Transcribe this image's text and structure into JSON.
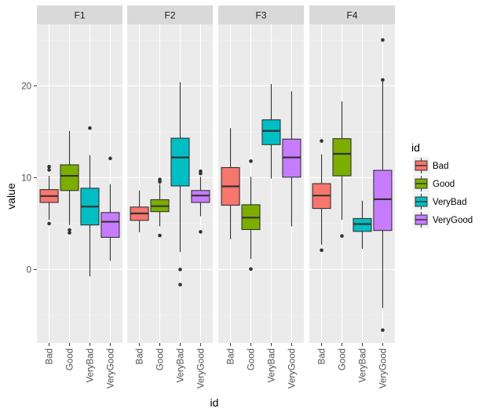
{
  "chart_data": {
    "type": "boxplot",
    "title": "",
    "xlabel": "id",
    "ylabel": "value",
    "ylim": [
      -8.0,
      26.7
    ],
    "yticks": [
      0,
      10,
      20
    ],
    "ytick_labels": [
      "0",
      "10",
      "20"
    ],
    "y_minor_gridlines": [
      -5,
      5,
      15,
      25
    ],
    "grid": true,
    "facet_variable": "",
    "facets": [
      "F1",
      "F2",
      "F3",
      "F4"
    ],
    "categories": [
      "Bad",
      "Good",
      "VeryBad",
      "VeryGood"
    ],
    "colors": {
      "Bad": "#F8766D",
      "Good": "#7CAE00",
      "VeryBad": "#00BFC4",
      "VeryGood": "#C77CFF"
    },
    "legend": {
      "title": "id",
      "position": "right",
      "entries": [
        "Bad",
        "Good",
        "VeryBad",
        "VeryGood"
      ]
    },
    "panels": [
      {
        "facet": "F1",
        "boxes": [
          {
            "category": "Bad",
            "whisker_low": 5.4,
            "q1": 7.3,
            "median": 8.0,
            "q3": 8.7,
            "whisker_high": 10.2,
            "outliers": [
              11.2,
              10.85,
              5.0
            ]
          },
          {
            "category": "Good",
            "whisker_low": 4.85,
            "q1": 8.6,
            "median": 10.2,
            "q3": 11.4,
            "whisker_high": 15.1,
            "outliers": [
              4.3,
              4.0
            ]
          },
          {
            "category": "VeryBad",
            "whisker_low": -0.75,
            "q1": 4.85,
            "median": 6.85,
            "q3": 8.85,
            "whisker_high": 12.45,
            "outliers": [
              15.4
            ]
          },
          {
            "category": "VeryGood",
            "whisker_low": 0.95,
            "q1": 3.5,
            "median": 5.2,
            "q3": 6.2,
            "whisker_high": 9.3,
            "outliers": [
              12.1
            ]
          }
        ]
      },
      {
        "facet": "F2",
        "boxes": [
          {
            "category": "Bad",
            "whisker_low": 4.05,
            "q1": 5.35,
            "median": 6.1,
            "q3": 6.8,
            "whisker_high": 8.6,
            "outliers": []
          },
          {
            "category": "Good",
            "whisker_low": 4.7,
            "q1": 6.3,
            "median": 6.9,
            "q3": 7.6,
            "whisker_high": 9.3,
            "outliers": [
              9.8,
              9.55,
              3.7
            ]
          },
          {
            "category": "VeryBad",
            "whisker_low": 1.9,
            "q1": 9.1,
            "median": 12.2,
            "q3": 14.3,
            "whisker_high": 20.4,
            "outliers": [
              0.0,
              -1.65
            ]
          },
          {
            "category": "VeryGood",
            "whisker_low": 5.8,
            "q1": 7.3,
            "median": 8.05,
            "q3": 8.6,
            "whisker_high": 10.1,
            "outliers": [
              10.7,
              10.45,
              4.1
            ]
          }
        ]
      },
      {
        "facet": "F3",
        "boxes": [
          {
            "category": "Bad",
            "whisker_low": 3.3,
            "q1": 7.0,
            "median": 9.05,
            "q3": 11.1,
            "whisker_high": 15.4,
            "outliers": []
          },
          {
            "category": "Good",
            "whisker_low": 1.15,
            "q1": 4.35,
            "median": 5.65,
            "q3": 7.05,
            "whisker_high": 10.1,
            "outliers": [
              11.8,
              0.05
            ]
          },
          {
            "category": "VeryBad",
            "whisker_low": 9.9,
            "q1": 13.6,
            "median": 15.1,
            "q3": 16.3,
            "whisker_high": 20.2,
            "outliers": []
          },
          {
            "category": "VeryGood",
            "whisker_low": 4.7,
            "q1": 10.05,
            "median": 12.2,
            "q3": 14.2,
            "whisker_high": 19.4,
            "outliers": []
          }
        ]
      },
      {
        "facet": "F4",
        "boxes": [
          {
            "category": "Bad",
            "whisker_low": 2.7,
            "q1": 6.65,
            "median": 8.05,
            "q3": 9.35,
            "whisker_high": 12.55,
            "outliers": [
              14.0,
              2.1
            ]
          },
          {
            "category": "Good",
            "whisker_low": 5.4,
            "q1": 10.2,
            "median": 12.6,
            "q3": 14.25,
            "whisker_high": 18.3,
            "outliers": [
              3.65
            ]
          },
          {
            "category": "VeryBad",
            "whisker_low": 2.25,
            "q1": 4.15,
            "median": 4.95,
            "q3": 5.55,
            "whisker_high": 7.5,
            "outliers": []
          },
          {
            "category": "VeryGood",
            "whisker_low": -4.2,
            "q1": 4.25,
            "median": 7.65,
            "q3": 10.8,
            "whisker_high": 20.5,
            "outliers": [
              25.0,
              20.65,
              -6.6
            ]
          }
        ]
      }
    ]
  }
}
